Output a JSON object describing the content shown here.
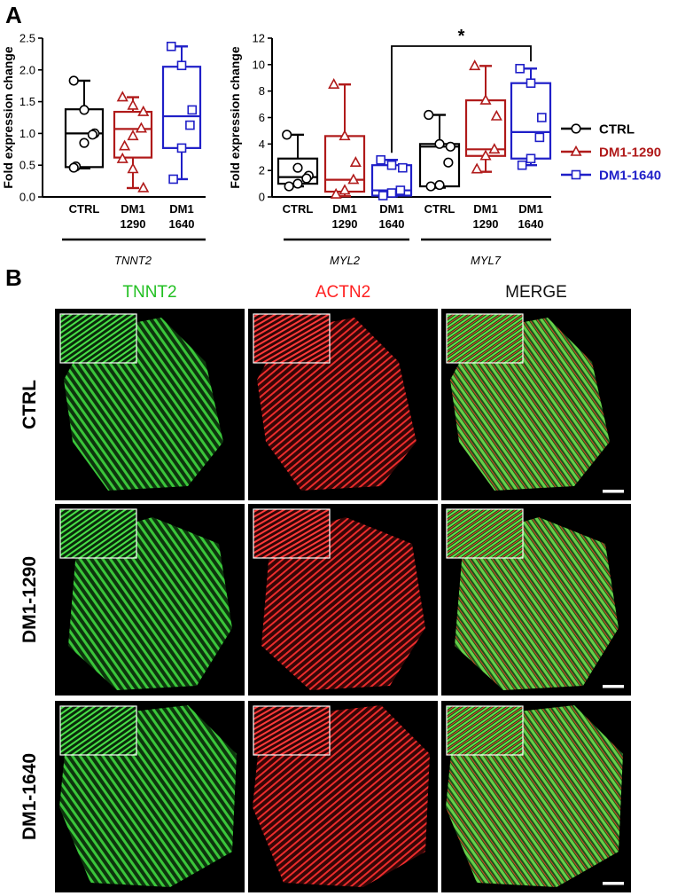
{
  "panels": {
    "a_label": "A",
    "b_label": "B"
  },
  "legend": [
    {
      "name": "CTRL",
      "color": "#000000",
      "marker": "circle"
    },
    {
      "name": "DM1-1290",
      "color": "#b01a1a",
      "marker": "triangle"
    },
    {
      "name": "DM1-1640",
      "color": "#1f1fc8",
      "marker": "square"
    }
  ],
  "chart_data": [
    {
      "type": "box",
      "ylabel": "Fold expression change",
      "ylim": [
        0,
        2.5
      ],
      "yticks": [
        "0.0",
        "0.5",
        "1.0",
        "1.5",
        "2.0",
        "2.5"
      ],
      "gene_label": "TNNT2",
      "categories": [
        {
          "line1": "CTRL",
          "line2": ""
        },
        {
          "line1": "DM1",
          "line2": "1290"
        },
        {
          "line1": "DM1",
          "line2": "1640"
        }
      ],
      "boxes": [
        {
          "group": "CTRL",
          "min": 0.45,
          "q1": 0.47,
          "median": 1.0,
          "q3": 1.38,
          "max": 1.83,
          "points": [
            1.83,
            1.37,
            1.0,
            0.98,
            0.85,
            0.48,
            0.46
          ]
        },
        {
          "group": "DM1-1290",
          "min": 0.14,
          "q1": 0.62,
          "median": 1.07,
          "q3": 1.34,
          "max": 1.57,
          "points": [
            1.57,
            1.44,
            1.34,
            1.08,
            0.96,
            0.8,
            0.6,
            0.44,
            0.14
          ]
        },
        {
          "group": "DM1-1640",
          "min": 0.28,
          "q1": 0.77,
          "median": 1.27,
          "q3": 2.05,
          "max": 2.37,
          "points": [
            2.37,
            2.07,
            1.37,
            1.13,
            0.77,
            0.28
          ]
        }
      ]
    },
    {
      "type": "box",
      "ylabel": "Fold expression change",
      "ylim": [
        0,
        12
      ],
      "yticks": [
        "0",
        "2",
        "4",
        "6",
        "8",
        "10",
        "12"
      ],
      "gene_labels": [
        "MYL2",
        "MYL7"
      ],
      "categories": [
        {
          "line1": "CTRL",
          "line2": ""
        },
        {
          "line1": "DM1",
          "line2": "1290"
        },
        {
          "line1": "DM1",
          "line2": "1640"
        },
        {
          "line1": "CTRL",
          "line2": ""
        },
        {
          "line1": "DM1",
          "line2": "1290"
        },
        {
          "line1": "DM1",
          "line2": "1640"
        }
      ],
      "boxes": [
        {
          "group": "CTRL",
          "min": 0.8,
          "q1": 1.0,
          "median": 1.5,
          "q3": 2.9,
          "max": 4.7,
          "points": [
            4.7,
            2.2,
            1.6,
            1.4,
            1.0,
            0.8
          ]
        },
        {
          "group": "DM1-1290",
          "min": 0.05,
          "q1": 0.4,
          "median": 1.3,
          "q3": 4.6,
          "max": 8.5,
          "points": [
            8.5,
            4.6,
            2.6,
            1.3,
            0.5,
            0.2
          ]
        },
        {
          "group": "DM1-1640",
          "min": 0.05,
          "q1": 0.1,
          "median": 0.5,
          "q3": 2.4,
          "max": 2.8,
          "points": [
            2.8,
            2.4,
            2.2,
            0.5,
            0.3,
            0.1
          ]
        },
        {
          "group": "CTRL",
          "min": 0.7,
          "q1": 0.8,
          "median": 3.8,
          "q3": 4.0,
          "max": 6.2,
          "points": [
            6.2,
            4.0,
            3.8,
            2.6,
            0.9,
            0.8
          ]
        },
        {
          "group": "DM1-1290",
          "min": 1.9,
          "q1": 3.1,
          "median": 3.6,
          "q3": 7.3,
          "max": 9.9,
          "points": [
            9.9,
            7.3,
            6.1,
            3.6,
            3.1,
            2.1
          ]
        },
        {
          "group": "DM1-1640",
          "min": 2.4,
          "q1": 2.9,
          "median": 4.9,
          "q3": 8.6,
          "max": 9.7,
          "points": [
            9.7,
            8.6,
            6.0,
            4.5,
            2.9,
            2.4
          ]
        }
      ],
      "significance": {
        "from": 2,
        "to": 5,
        "label": "*",
        "level": 11.8
      }
    }
  ],
  "micrographs": {
    "columns": [
      "TNNT2",
      "ACTN2",
      "MERGE"
    ],
    "column_colors": [
      "#22c022",
      "#ff2020",
      "#111111"
    ],
    "rows": [
      "CTRL",
      "DM1-1290",
      "DM1-1640"
    ]
  }
}
